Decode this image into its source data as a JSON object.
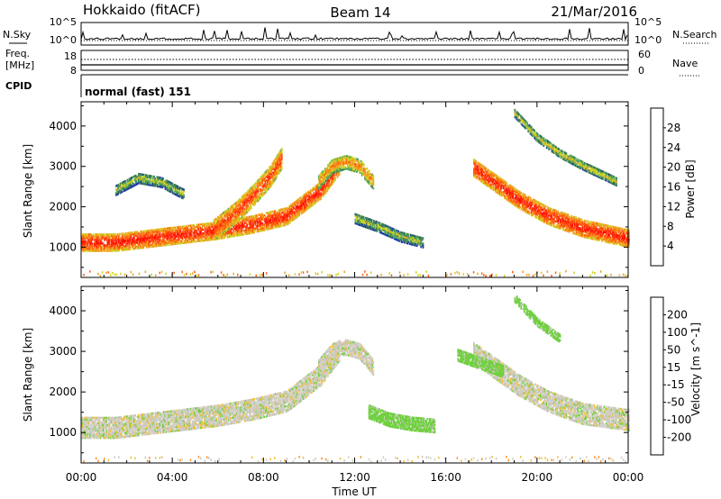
{
  "header": {
    "title": "Hokkaido (fitACF)",
    "beam": "Beam 14",
    "date": "21/Mar/2016"
  },
  "noise_panel": {
    "left_label": "N.Sky",
    "right_label": "N.Search",
    "left_ticks": [
      "10^5",
      "10^0"
    ],
    "right_ticks": [
      "10^5",
      "10^0"
    ]
  },
  "freq_panel": {
    "left_label_line1": "Freq.",
    "left_label_line2": "[MHz]",
    "right_label": "Nave",
    "left_ticks": [
      "18",
      "8"
    ],
    "right_ticks": [
      "60",
      "0"
    ]
  },
  "cpid_panel": {
    "label": "CPID",
    "program": "normal (fast) 151"
  },
  "x_axis": {
    "label": "Time UT",
    "ticks": [
      "00:00",
      "04:00",
      "08:00",
      "12:00",
      "16:00",
      "20:00",
      "00:00"
    ]
  },
  "colors": {
    "power_scale": [
      "#1010e0",
      "#2040a0",
      "#3c7a5a",
      "#58a85a",
      "#cfd020",
      "#f0a020",
      "#ff6010",
      "#ff2a10",
      "#ff0000"
    ],
    "velocity_scale": [
      "#ff0000",
      "#ff4010",
      "#ff9020",
      "#f0c030",
      "#d6d0c0",
      "#c8c8c0",
      "#70d040",
      "#2a8a5a",
      "#2030c0"
    ]
  },
  "chart_data": [
    {
      "type": "heatmap",
      "panel": "power",
      "xlabel": "Time UT",
      "ylabel": "Slant Range [km]",
      "xlim": [
        0,
        24
      ],
      "ylim": [
        250,
        4600
      ],
      "yticks": [
        "1000",
        "2000",
        "3000",
        "4000"
      ],
      "colorbar": {
        "label": "Power [dB]",
        "range": [
          0,
          32
        ],
        "ticks": [
          "4",
          "8",
          "12",
          "16",
          "20",
          "24",
          "28"
        ]
      },
      "echo_bands": [
        {
          "t": [
            0.0,
            1.5,
            3.0,
            4.5,
            6.0,
            7.5,
            9.0,
            10.5,
            11.3
          ],
          "r": [
            1100,
            1100,
            1200,
            1300,
            1400,
            1550,
            1750,
            2400,
            3000
          ],
          "width_km": 420,
          "power_db": 28
        },
        {
          "t": [
            5.8,
            6.8,
            7.6,
            8.3,
            8.8
          ],
          "r": [
            1400,
            1850,
            2300,
            2750,
            3200
          ],
          "width_km": 500,
          "power_db": 26
        },
        {
          "t": [
            10.4,
            11.0,
            11.6,
            12.2,
            12.8
          ],
          "r": [
            2600,
            3000,
            3100,
            3000,
            2600
          ],
          "width_km": 350,
          "power_db": 22
        },
        {
          "t": [
            17.2,
            18.2,
            19.2,
            20.5,
            22.0,
            24.0
          ],
          "r": [
            2950,
            2550,
            2150,
            1750,
            1450,
            1200
          ],
          "width_km": 420,
          "power_db": 28
        },
        {
          "t": [
            12.0,
            13.0,
            14.0,
            15.0
          ],
          "r": [
            1700,
            1500,
            1250,
            1100
          ],
          "width_km": 260,
          "power_db": 16
        },
        {
          "t": [
            1.5,
            2.5,
            3.5,
            4.5
          ],
          "r": [
            2400,
            2700,
            2600,
            2300
          ],
          "width_km": 260,
          "power_db": 16
        },
        {
          "t": [
            19.0,
            20.0,
            21.0,
            22.0,
            23.5
          ],
          "r": [
            4300,
            3700,
            3300,
            3000,
            2600
          ],
          "width_km": 200,
          "power_db": 18
        }
      ]
    },
    {
      "type": "heatmap",
      "panel": "velocity",
      "xlabel": "Time UT",
      "ylabel": "Slant Range [km]",
      "xlim": [
        0,
        24
      ],
      "ylim": [
        250,
        4600
      ],
      "yticks": [
        "1000",
        "2000",
        "3000",
        "4000"
      ],
      "colorbar": {
        "label": "Velocity [m s^-1]",
        "range": [
          -250,
          250
        ],
        "ticks": [
          "200",
          "100",
          "50",
          "15",
          "-15",
          "-50",
          "-100",
          "-200"
        ]
      },
      "echo_bands": [
        {
          "t": [
            0.0,
            1.5,
            3.0,
            4.5,
            6.0,
            7.5,
            9.0,
            10.5,
            11.3
          ],
          "r": [
            1100,
            1100,
            1200,
            1300,
            1400,
            1550,
            1750,
            2400,
            3000
          ],
          "width_km": 500,
          "velocity": 0
        },
        {
          "t": [
            10.4,
            11.0,
            11.6,
            12.2,
            12.8
          ],
          "r": [
            2600,
            3000,
            3100,
            3000,
            2600
          ],
          "width_km": 400,
          "velocity": 0
        },
        {
          "t": [
            17.2,
            18.2,
            19.2,
            20.5,
            22.0,
            24.0
          ],
          "r": [
            2950,
            2550,
            2150,
            1750,
            1450,
            1300
          ],
          "width_km": 520,
          "velocity": 0
        },
        {
          "t": [
            12.6,
            13.5,
            14.5,
            15.5
          ],
          "r": [
            1500,
            1300,
            1200,
            1150
          ],
          "width_km": 330,
          "velocity": 30
        },
        {
          "t": [
            16.5,
            17.5,
            18.5
          ],
          "r": [
            2900,
            2700,
            2500
          ],
          "width_km": 300,
          "velocity": 30
        },
        {
          "t": [
            19.0,
            20.0,
            21.0
          ],
          "r": [
            4300,
            3700,
            3300
          ],
          "width_km": 200,
          "velocity": 30
        }
      ]
    }
  ]
}
